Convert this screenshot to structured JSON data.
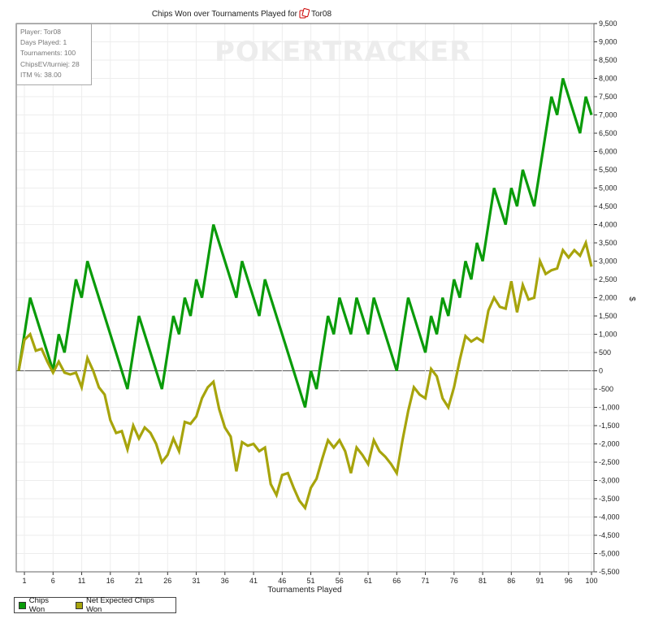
{
  "watermark": {
    "text": "POKERTRACKER"
  },
  "info": {
    "player": "Player: Tor08",
    "days": "Days Played: 1",
    "tournaments": "Tournaments: 100",
    "chipsev": "ChipsEV/turniej: 28",
    "itm": "ITM %: 38.00"
  },
  "legend": {
    "chips_won": "Chips Won",
    "net_expected": "Net Expected Chips Won"
  },
  "chart_data": {
    "type": "line",
    "title_prefix": "Chips Won over Tournaments Played for",
    "title_player": "Tor08",
    "title_icon": "poker-cards-icon",
    "xlabel": "Tournaments Played",
    "ylabel": "$",
    "xlim": [
      0,
      100
    ],
    "ylim": [
      -5500,
      9500
    ],
    "x_ticks": [
      1,
      6,
      11,
      16,
      21,
      26,
      31,
      36,
      41,
      46,
      51,
      56,
      61,
      66,
      71,
      76,
      81,
      86,
      91,
      96,
      100
    ],
    "y_ticks": [
      "9,500",
      "9,000",
      "8,500",
      "8,000",
      "7,500",
      "7,000",
      "6,500",
      "6,000",
      "5,500",
      "5,000",
      "4,500",
      "4,000",
      "3,500",
      "3,000",
      "2,500",
      "2,000",
      "1,500",
      "1,000",
      "500",
      "0",
      "-500",
      "-1,000",
      "-1,500",
      "-2,000",
      "-2,500",
      "-3,000",
      "-3,500",
      "-4,000",
      "-4,500",
      "-5,000",
      "-5,500"
    ],
    "series": [
      {
        "name": "Chips Won",
        "color": "#0a9b0a",
        "points": [
          [
            0,
            0
          ],
          [
            2,
            2000
          ],
          [
            6,
            0
          ],
          [
            7,
            1000
          ],
          [
            8,
            500
          ],
          [
            10,
            2500
          ],
          [
            11,
            2000
          ],
          [
            12,
            3000
          ],
          [
            19,
            -500
          ],
          [
            21,
            1500
          ],
          [
            25,
            -500
          ],
          [
            27,
            1500
          ],
          [
            28,
            1000
          ],
          [
            29,
            2000
          ],
          [
            30,
            1500
          ],
          [
            31,
            2500
          ],
          [
            32,
            2000
          ],
          [
            34,
            4000
          ],
          [
            38,
            2000
          ],
          [
            39,
            3000
          ],
          [
            42,
            1500
          ],
          [
            43,
            2500
          ],
          [
            50,
            -1000
          ],
          [
            51,
            0
          ],
          [
            52,
            -500
          ],
          [
            54,
            1500
          ],
          [
            55,
            1000
          ],
          [
            56,
            2000
          ],
          [
            58,
            1000
          ],
          [
            59,
            2000
          ],
          [
            61,
            1000
          ],
          [
            62,
            2000
          ],
          [
            66,
            0
          ],
          [
            68,
            2000
          ],
          [
            71,
            500
          ],
          [
            72,
            1500
          ],
          [
            73,
            1000
          ],
          [
            74,
            2000
          ],
          [
            75,
            1500
          ],
          [
            76,
            2500
          ],
          [
            77,
            2000
          ],
          [
            78,
            3000
          ],
          [
            79,
            2500
          ],
          [
            80,
            3500
          ],
          [
            81,
            3000
          ],
          [
            83,
            5000
          ],
          [
            85,
            4000
          ],
          [
            86,
            5000
          ],
          [
            87,
            4500
          ],
          [
            88,
            5500
          ],
          [
            90,
            4500
          ],
          [
            93,
            7500
          ],
          [
            94,
            7000
          ],
          [
            95,
            8000
          ],
          [
            98,
            6500
          ],
          [
            99,
            7500
          ],
          [
            100,
            7000
          ]
        ]
      },
      {
        "name": "Net Expected Chips Won",
        "color": "#a7a40c",
        "points": [
          [
            0,
            0
          ],
          [
            1,
            850
          ],
          [
            2,
            1000
          ],
          [
            3,
            550
          ],
          [
            4,
            600
          ],
          [
            5,
            250
          ],
          [
            6,
            -50
          ],
          [
            7,
            250
          ],
          [
            8,
            -50
          ],
          [
            9,
            -100
          ],
          [
            10,
            -50
          ],
          [
            11,
            -450
          ],
          [
            12,
            350
          ],
          [
            13,
            0
          ],
          [
            14,
            -450
          ],
          [
            15,
            -650
          ],
          [
            16,
            -1350
          ],
          [
            17,
            -1700
          ],
          [
            18,
            -1650
          ],
          [
            19,
            -2150
          ],
          [
            20,
            -1500
          ],
          [
            21,
            -1850
          ],
          [
            22,
            -1550
          ],
          [
            23,
            -1700
          ],
          [
            24,
            -2000
          ],
          [
            25,
            -2500
          ],
          [
            26,
            -2300
          ],
          [
            27,
            -1850
          ],
          [
            28,
            -2200
          ],
          [
            29,
            -1400
          ],
          [
            30,
            -1450
          ],
          [
            31,
            -1250
          ],
          [
            32,
            -750
          ],
          [
            33,
            -450
          ],
          [
            34,
            -300
          ],
          [
            35,
            -1050
          ],
          [
            36,
            -1550
          ],
          [
            37,
            -1800
          ],
          [
            38,
            -2750
          ],
          [
            39,
            -1950
          ],
          [
            40,
            -2050
          ],
          [
            41,
            -2000
          ],
          [
            42,
            -2200
          ],
          [
            43,
            -2100
          ],
          [
            44,
            -3100
          ],
          [
            45,
            -3400
          ],
          [
            46,
            -2850
          ],
          [
            47,
            -2800
          ],
          [
            48,
            -3200
          ],
          [
            49,
            -3550
          ],
          [
            50,
            -3750
          ],
          [
            51,
            -3200
          ],
          [
            52,
            -2950
          ],
          [
            53,
            -2400
          ],
          [
            54,
            -1900
          ],
          [
            55,
            -2100
          ],
          [
            56,
            -1900
          ],
          [
            57,
            -2200
          ],
          [
            58,
            -2800
          ],
          [
            59,
            -2100
          ],
          [
            60,
            -2300
          ],
          [
            61,
            -2550
          ],
          [
            62,
            -1900
          ],
          [
            63,
            -2200
          ],
          [
            64,
            -2350
          ],
          [
            65,
            -2550
          ],
          [
            66,
            -2800
          ],
          [
            67,
            -1900
          ],
          [
            68,
            -1100
          ],
          [
            69,
            -450
          ],
          [
            70,
            -650
          ],
          [
            71,
            -750
          ],
          [
            72,
            50
          ],
          [
            73,
            -150
          ],
          [
            74,
            -750
          ],
          [
            75,
            -1000
          ],
          [
            76,
            -450
          ],
          [
            77,
            300
          ],
          [
            78,
            950
          ],
          [
            79,
            800
          ],
          [
            80,
            900
          ],
          [
            81,
            800
          ],
          [
            82,
            1650
          ],
          [
            83,
            2000
          ],
          [
            84,
            1750
          ],
          [
            85,
            1700
          ],
          [
            86,
            2450
          ],
          [
            87,
            1600
          ],
          [
            88,
            2350
          ],
          [
            89,
            1950
          ],
          [
            90,
            2000
          ],
          [
            91,
            3000
          ],
          [
            92,
            2650
          ],
          [
            93,
            2750
          ],
          [
            94,
            2800
          ],
          [
            95,
            3300
          ],
          [
            96,
            3100
          ],
          [
            97,
            3300
          ],
          [
            98,
            3150
          ],
          [
            99,
            3500
          ],
          [
            100,
            2850
          ]
        ]
      }
    ]
  }
}
